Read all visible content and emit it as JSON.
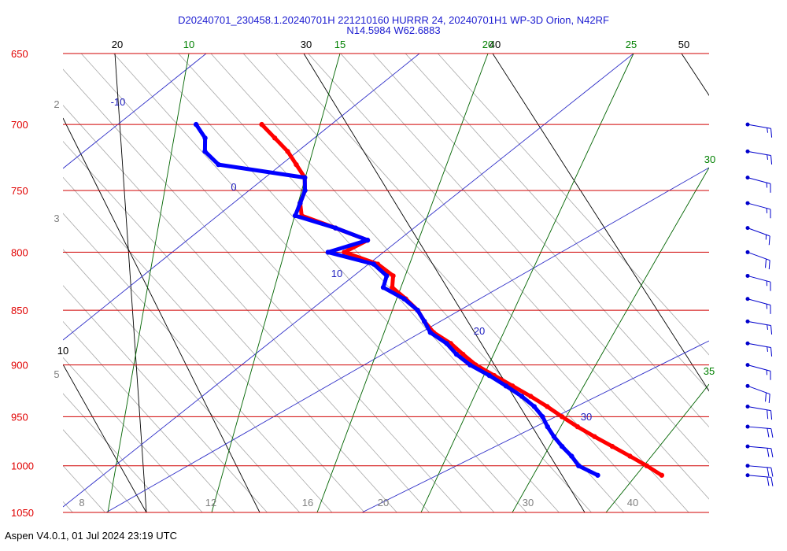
{
  "header": {
    "title_line1": "D20240701_230458.1.20240701H 221210160 HURRR 24, 20240701H1 WP-3D Orion, N42RF",
    "title_line2": "N14.5984 W62.6883"
  },
  "footer": {
    "text": "Aspen V4.0.1, 01 Jul 2024  23:19 UTC"
  },
  "colors": {
    "isobar": "#d00000",
    "pressure_label": "#e00000",
    "temperature_profile": "#ff0000",
    "dewpoint_profile": "#0000ff",
    "dry_adiabat": "#000000",
    "isotherm_label": "#000000",
    "moist_adiabat": "#006400",
    "moist_adiabat_label": "#008000",
    "mixing_ratio_label": "#2020c0",
    "bottom_label": "#808080",
    "left_gray_label": "#808080",
    "wind_barb": "#0000cc"
  },
  "chart_data": {
    "type": "skew-t",
    "title": "D20240701_230458.1.20240701H 221210160 HURRR 24, 20240701H1 WP-3D Orion, N42RF",
    "subtitle": "N14.5984 W62.6883",
    "pressure_levels": [
      650,
      700,
      750,
      800,
      850,
      900,
      950,
      1000,
      1050
    ],
    "pressure_labels": [
      "650",
      "700",
      "750",
      "800",
      "850",
      "900",
      "950",
      "1000",
      "1050"
    ],
    "top_black_labels": [
      "20",
      "30",
      "40",
      "50"
    ],
    "top_green_labels": [
      "10",
      "15",
      "20",
      "25"
    ],
    "right_green_labels": [
      "30",
      "35"
    ],
    "blue_labels": [
      "-10",
      "0",
      "10",
      "20",
      "30"
    ],
    "left_black_label": "10",
    "left_gray_labels": [
      "2",
      "3",
      "5"
    ],
    "bottom_labels": [
      "8",
      "12",
      "16",
      "20",
      "30",
      "40"
    ],
    "temperature_profile": {
      "name": "Temperature",
      "points": [
        [
          700,
          18.4
        ],
        [
          710,
          18.5
        ],
        [
          720,
          18.6
        ],
        [
          730,
          18.2
        ],
        [
          740,
          17.8
        ],
        [
          750,
          16.4
        ],
        [
          760,
          14.4
        ],
        [
          770,
          13.2
        ],
        [
          780,
          16.0
        ],
        [
          790,
          18.6
        ],
        [
          800,
          14.4
        ],
        [
          810,
          17.2
        ],
        [
          820,
          17.8
        ],
        [
          830,
          16.4
        ],
        [
          840,
          16.8
        ],
        [
          850,
          17.0
        ],
        [
          860,
          16.6
        ],
        [
          870,
          16.5
        ],
        [
          880,
          17.4
        ],
        [
          890,
          17.7
        ],
        [
          900,
          18.1
        ],
        [
          910,
          19.2
        ],
        [
          920,
          20.3
        ],
        [
          930,
          21.4
        ],
        [
          940,
          22.3
        ],
        [
          950,
          23.0
        ],
        [
          960,
          23.8
        ],
        [
          970,
          24.8
        ],
        [
          980,
          25.9
        ],
        [
          990,
          27.0
        ],
        [
          1000,
          28.0
        ],
        [
          1010,
          28.8
        ]
      ]
    },
    "dewpoint_profile": {
      "name": "Dew point",
      "points": [
        [
          700,
          10.3
        ],
        [
          710,
          9.9
        ],
        [
          720,
          8.4
        ],
        [
          730,
          8.6
        ],
        [
          740,
          17.8
        ],
        [
          750,
          16.4
        ],
        [
          760,
          14.4
        ],
        [
          770,
          12.4
        ],
        [
          780,
          16.0
        ],
        [
          790,
          18.6
        ],
        [
          800,
          12.4
        ],
        [
          810,
          16.7
        ],
        [
          820,
          17.0
        ],
        [
          830,
          15.3
        ],
        [
          840,
          16.6
        ],
        [
          850,
          17.0
        ],
        [
          860,
          16.6
        ],
        [
          870,
          16.1
        ],
        [
          880,
          16.9
        ],
        [
          890,
          16.9
        ],
        [
          900,
          17.4
        ],
        [
          910,
          18.6
        ],
        [
          920,
          19.5
        ],
        [
          930,
          20.3
        ],
        [
          940,
          20.7
        ],
        [
          950,
          20.6
        ],
        [
          960,
          20.1
        ],
        [
          970,
          19.8
        ],
        [
          980,
          19.7
        ],
        [
          990,
          19.8
        ],
        [
          1000,
          19.6
        ],
        [
          1010,
          20.9
        ]
      ]
    },
    "wind_barbs": [
      {
        "p": 700,
        "dir": 100,
        "speed": 15
      },
      {
        "p": 720,
        "dir": 100,
        "speed": 15
      },
      {
        "p": 740,
        "dir": 105,
        "speed": 15
      },
      {
        "p": 760,
        "dir": 105,
        "speed": 15
      },
      {
        "p": 780,
        "dir": 110,
        "speed": 15
      },
      {
        "p": 800,
        "dir": 110,
        "speed": 20
      },
      {
        "p": 820,
        "dir": 105,
        "speed": 15
      },
      {
        "p": 840,
        "dir": 105,
        "speed": 15
      },
      {
        "p": 860,
        "dir": 100,
        "speed": 15
      },
      {
        "p": 880,
        "dir": 100,
        "speed": 15
      },
      {
        "p": 900,
        "dir": 105,
        "speed": 15
      },
      {
        "p": 920,
        "dir": 110,
        "speed": 20
      },
      {
        "p": 940,
        "dir": 100,
        "speed": 20
      },
      {
        "p": 960,
        "dir": 95,
        "speed": 20
      },
      {
        "p": 980,
        "dir": 95,
        "speed": 20
      },
      {
        "p": 1000,
        "dir": 95,
        "speed": 20
      },
      {
        "p": 1010,
        "dir": 95,
        "speed": 20
      }
    ]
  }
}
